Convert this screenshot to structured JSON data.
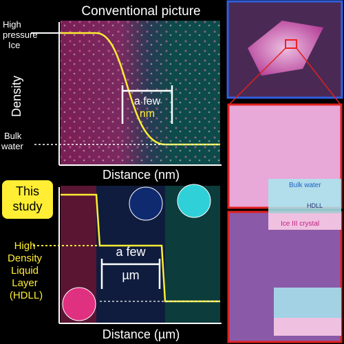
{
  "top_panel": {
    "title": "Conventional picture",
    "left_label": [
      "High",
      "pressure",
      "Ice"
    ],
    "y_axis": "Density",
    "span": [
      "a few",
      "nm"
    ],
    "bulk_label": [
      "Bulk",
      "water"
    ],
    "x_axis": "Distance (nm)"
  },
  "bottom_panel": {
    "badge": [
      "This",
      "study"
    ],
    "hdll_label": [
      "High",
      "Density",
      "Liquid",
      "Layer",
      "(HDLL)"
    ],
    "span": [
      "a few",
      "µm"
    ],
    "x_axis": "Distance (µm)"
  },
  "images": {
    "bulk_water": "Bulk water",
    "hdll": "HDLL",
    "crystal": "Ice III crystal"
  }
}
